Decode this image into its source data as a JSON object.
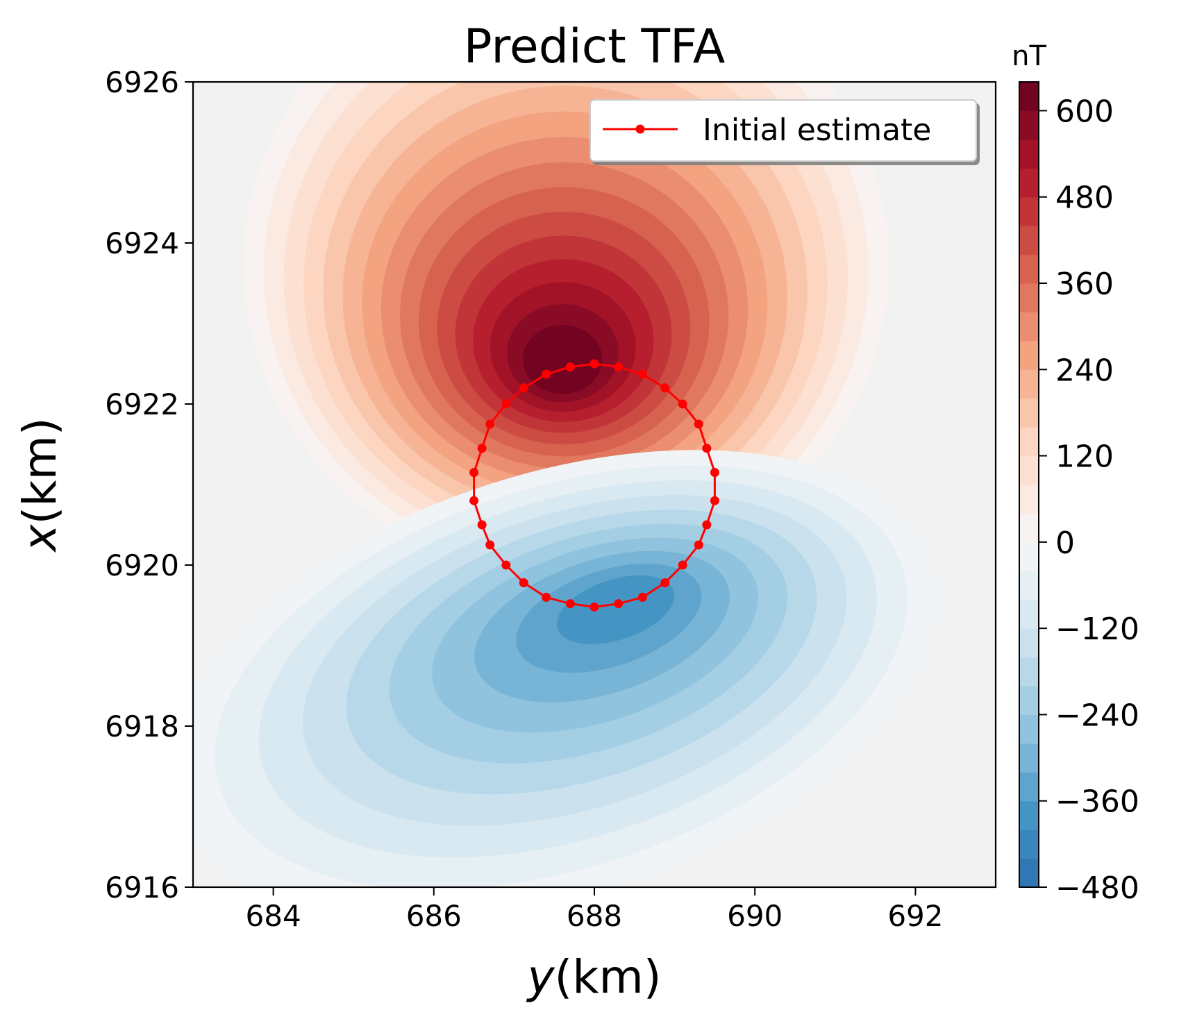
{
  "chart_data": {
    "type": "contour",
    "title": "Predict TFA",
    "xlabel_var": "y",
    "xlabel_unit": "(km)",
    "ylabel_var": "x",
    "ylabel_unit": "(km)",
    "xlim": [
      683,
      693
    ],
    "ylim": [
      6916,
      6926
    ],
    "xticks": [
      "684",
      "686",
      "688",
      "690",
      "692"
    ],
    "yticks": [
      "6916",
      "6918",
      "6920",
      "6922",
      "6924",
      "6926"
    ],
    "colorbar": {
      "label": "nT",
      "range": [
        -480,
        640
      ],
      "ticks": [
        "600",
        "480",
        "360",
        "240",
        "120",
        "0",
        "−120",
        "−240",
        "−360",
        "−480"
      ],
      "tick_values": [
        600,
        480,
        360,
        240,
        120,
        0,
        -120,
        -240,
        -360,
        -480
      ],
      "level_step": 40,
      "colormap": "RdBu_r"
    },
    "anomaly": {
      "positive_peak": {
        "y": 687.6,
        "x": 6922.6,
        "value": 640
      },
      "negative_peak": {
        "y": 688.4,
        "x": 6919.5,
        "value": -400
      }
    },
    "series": [
      {
        "name": "Initial estimate",
        "color": "#ff0000",
        "marker": "circle",
        "points": [
          [
            689.5,
            6920.8
          ],
          [
            689.5,
            6921.15
          ],
          [
            689.4,
            6921.45
          ],
          [
            689.3,
            6921.75
          ],
          [
            689.1,
            6922.0
          ],
          [
            688.88,
            6922.2
          ],
          [
            688.6,
            6922.37
          ],
          [
            688.3,
            6922.46
          ],
          [
            688.0,
            6922.5
          ],
          [
            687.7,
            6922.46
          ],
          [
            687.4,
            6922.37
          ],
          [
            687.12,
            6922.2
          ],
          [
            686.9,
            6922.0
          ],
          [
            686.7,
            6921.75
          ],
          [
            686.6,
            6921.45
          ],
          [
            686.5,
            6921.15
          ],
          [
            686.5,
            6920.8
          ],
          [
            686.6,
            6920.5
          ],
          [
            686.7,
            6920.25
          ],
          [
            686.9,
            6920.0
          ],
          [
            687.12,
            6919.78
          ],
          [
            687.4,
            6919.6
          ],
          [
            687.7,
            6919.52
          ],
          [
            688.0,
            6919.48
          ],
          [
            688.3,
            6919.52
          ],
          [
            688.6,
            6919.6
          ],
          [
            688.88,
            6919.78
          ],
          [
            689.1,
            6920.0
          ],
          [
            689.3,
            6920.25
          ],
          [
            689.4,
            6920.5
          ],
          [
            689.5,
            6920.8
          ]
        ]
      }
    ]
  }
}
